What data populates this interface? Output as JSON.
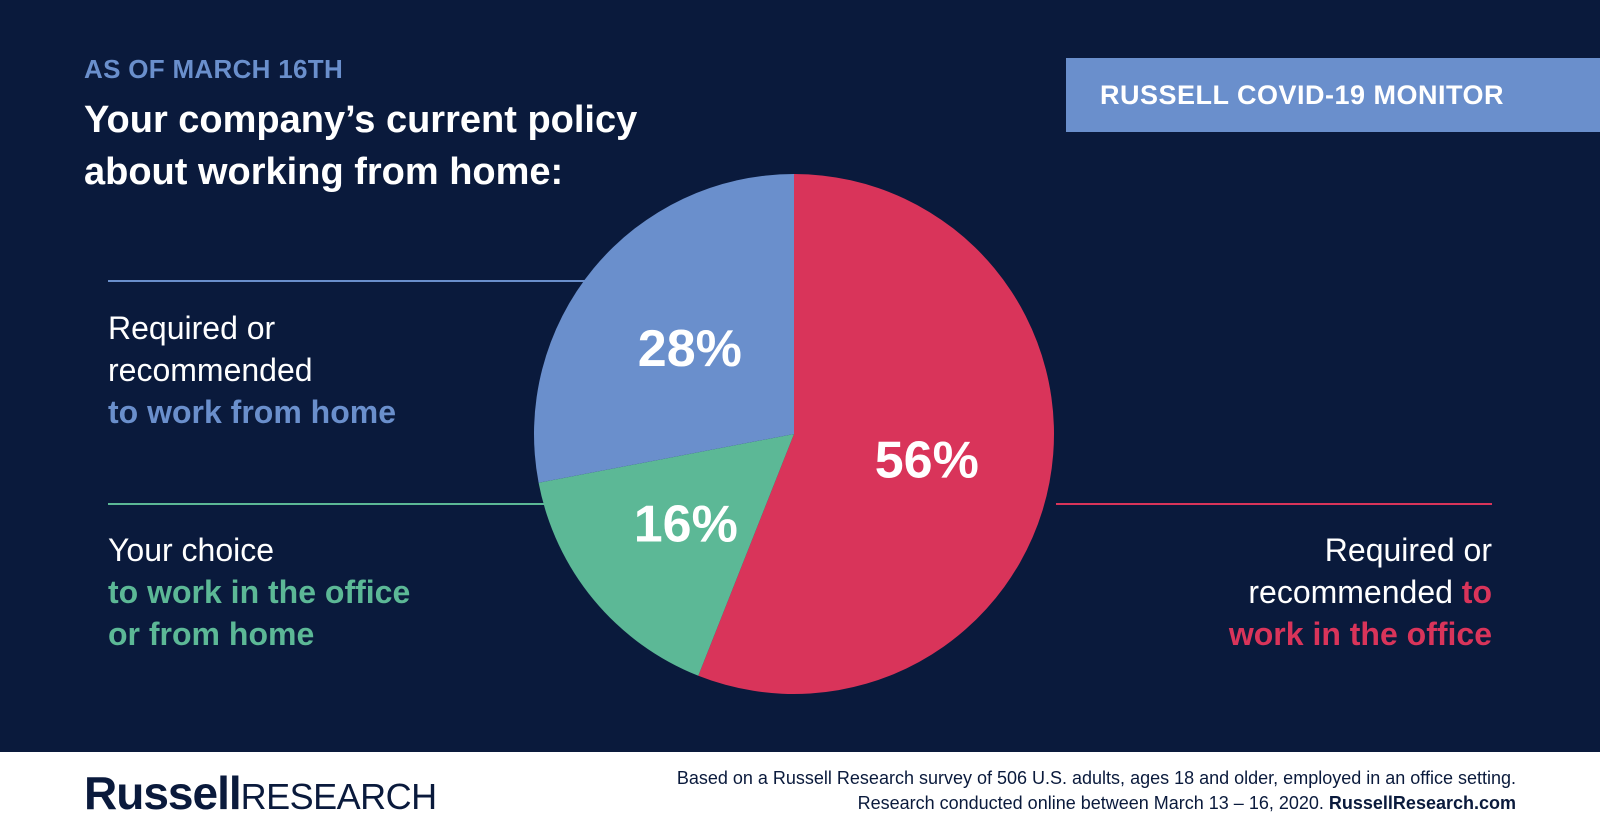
{
  "header": {
    "kicker": "AS OF MARCH 16TH",
    "title": "Your company’s current policy about working from home:",
    "badge": "RUSSELL COVID-19 MONITOR"
  },
  "colors": {
    "background": "#0a1a3c",
    "blue": "#6a8fcc",
    "green": "#5cb896",
    "red": "#d9345a",
    "white": "#ffffff",
    "navy": "#0a1a3c"
  },
  "labels": {
    "wfh": {
      "line1": "Required or",
      "line2": "recommended",
      "highlight": "to work from home"
    },
    "choice": {
      "line1": "Your choice",
      "highlight1": "to work in the office",
      "highlight2": "or from home"
    },
    "office": {
      "line1": "Required or",
      "line2_plain": "recommended ",
      "line2_hl": "to",
      "line3_hl": "work in the office"
    }
  },
  "chart_data": {
    "type": "pie",
    "slices": [
      {
        "label": "to work in the office",
        "value": 56,
        "text": "56%",
        "color": "#d9345a"
      },
      {
        "label": "to work in the office or from home",
        "value": 16,
        "text": "16%",
        "color": "#5cb896"
      },
      {
        "label": "to work from home",
        "value": 28,
        "text": "28%",
        "color": "#6a8fcc"
      }
    ]
  },
  "footer": {
    "brand_bold": "Russell",
    "brand_light": "RESEARCH",
    "note_line1": "Based on a Russell Research survey of 506 U.S. adults, ages 18 and older, employed in an office setting.",
    "note_line2_prefix": "Research conducted online between March 13 – 16, 2020. ",
    "note_site": "RussellResearch.com"
  }
}
